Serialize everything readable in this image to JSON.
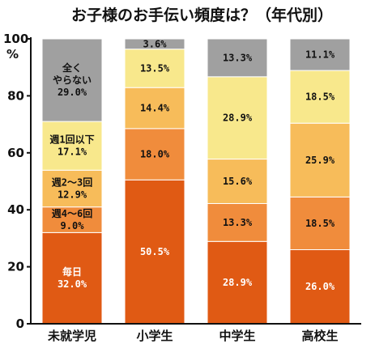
{
  "chart_data": {
    "type": "bar",
    "stacked": true,
    "title": "お子様のお手伝い頻度は？（年代別）",
    "ylabel": "%",
    "ylim": [
      0,
      100
    ],
    "yticks": [
      0,
      20,
      40,
      60,
      80,
      100
    ],
    "categories": [
      "未就学児",
      "小学生",
      "中学生",
      "高校生"
    ],
    "series": [
      {
        "name": "毎日",
        "color": "#e05a14",
        "values": [
          32.0,
          50.5,
          28.9,
          26.0
        ]
      },
      {
        "name": "週4〜6回",
        "color": "#f08c3c",
        "values": [
          9.0,
          18.0,
          13.3,
          18.5
        ]
      },
      {
        "name": "週2〜3回",
        "color": "#f7bc5a",
        "values": [
          12.9,
          14.4,
          15.6,
          25.9
        ]
      },
      {
        "name": "週1回以下",
        "color": "#f8e88c",
        "values": [
          17.1,
          13.5,
          28.9,
          18.5
        ]
      },
      {
        "name": "全くやらない",
        "color": "#a0a0a0",
        "values": [
          29.0,
          3.6,
          13.3,
          11.1
        ]
      }
    ],
    "labels": [
      [
        "毎日\n32.0%",
        "50.5%",
        "28.9%",
        "26.0%"
      ],
      [
        "週4〜6回\n9.0%",
        "18.0%",
        "13.3%",
        "18.5%"
      ],
      [
        "週2〜3回\n12.9%",
        "14.4%",
        "15.6%",
        "25.9%"
      ],
      [
        "週1回以下\n17.1%",
        "13.5%",
        "28.9%",
        "18.5%"
      ],
      [
        "全く\nやらない\n29.0%",
        "3.6%",
        "13.3%",
        "11.1%"
      ]
    ],
    "label_colors": [
      "#ffffff",
      "#111111",
      "#111111",
      "#111111",
      "#111111"
    ]
  }
}
